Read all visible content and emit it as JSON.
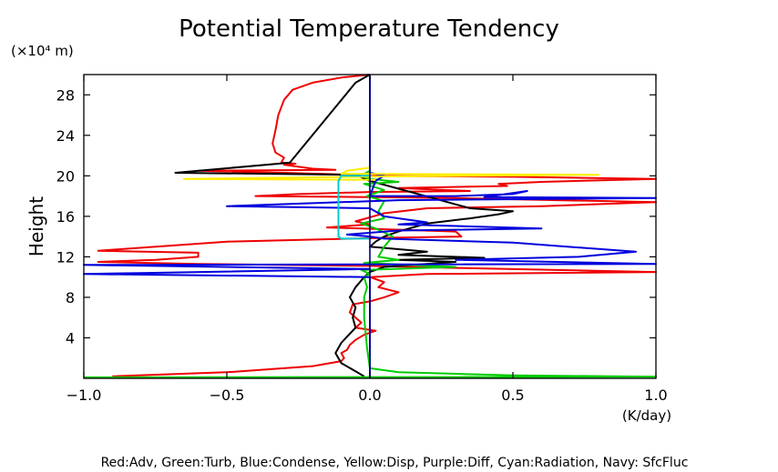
{
  "chart_data": {
    "type": "line",
    "title": "Potential Temperature Tendency",
    "ylabel": "Height",
    "y_unit_label": "(×10⁴ m)",
    "x_unit_label": "(K/day)",
    "caption": "Red:Adv, Green:Turb, Blue:Condense, Yellow:Disp, Purple:Diff, Cyan:Radiation, Navy: SfcFluc",
    "xlim": [
      -1.0,
      1.0
    ],
    "ylim": [
      0,
      30
    ],
    "x_ticks": [
      -1.0,
      -0.5,
      0.0,
      0.5,
      1.0
    ],
    "x_tick_labels": [
      "−1.0",
      "−0.5",
      "0.0",
      "0.5",
      "1.0"
    ],
    "y_ticks": [
      4,
      8,
      12,
      16,
      20,
      24,
      28
    ],
    "y_tick_labels": [
      "4",
      "8",
      "12",
      "16",
      "20",
      "24",
      "28"
    ],
    "grid": false,
    "series": [
      {
        "color": "#ee0000",
        "points": [
          [
            0.0,
            30
          ],
          [
            -0.1,
            29.7
          ],
          [
            -0.2,
            29.2
          ],
          [
            -0.27,
            28.5
          ],
          [
            -0.3,
            27.5
          ],
          [
            -0.32,
            26
          ],
          [
            -0.33,
            24.5
          ],
          [
            -0.34,
            23.2
          ],
          [
            -0.33,
            22.3
          ],
          [
            -0.3,
            21.8
          ],
          [
            -0.31,
            21.3
          ],
          [
            -0.26,
            21.2
          ],
          [
            -0.3,
            21.1
          ],
          [
            -0.2,
            20.7
          ],
          [
            -0.12,
            20.6
          ],
          [
            -0.6,
            20.5
          ],
          [
            -0.3,
            20.3
          ],
          [
            -0.06,
            20.1
          ],
          [
            -0.02,
            20.0
          ],
          [
            0.5,
            19.9
          ],
          [
            1.0,
            19.7
          ],
          [
            0.6,
            19.4
          ],
          [
            0.45,
            19.2
          ],
          [
            0.48,
            19.0
          ],
          [
            0.1,
            18.8
          ],
          [
            0.35,
            18.5
          ],
          [
            0.0,
            18.4
          ],
          [
            -0.25,
            18.2
          ],
          [
            -0.4,
            18.0
          ],
          [
            0.0,
            17.9
          ],
          [
            0.3,
            17.8
          ],
          [
            1.0,
            17.4
          ],
          [
            0.6,
            17.0
          ],
          [
            0.2,
            16.8
          ],
          [
            0.05,
            16.3
          ],
          [
            0.0,
            15.9
          ],
          [
            -0.05,
            15.5
          ],
          [
            0.0,
            15.2
          ],
          [
            -0.15,
            14.9
          ],
          [
            0.3,
            14.5
          ],
          [
            0.32,
            14.0
          ],
          [
            0.1,
            13.9
          ],
          [
            -0.5,
            13.5
          ],
          [
            -0.95,
            12.6
          ],
          [
            -0.6,
            12.4
          ],
          [
            -0.6,
            12.0
          ],
          [
            -0.75,
            11.7
          ],
          [
            -0.95,
            11.5
          ],
          [
            -0.6,
            11.3
          ],
          [
            0.0,
            11.1
          ],
          [
            0.3,
            10.9
          ],
          [
            1.0,
            10.5
          ],
          [
            0.2,
            10.3
          ],
          [
            0.0,
            10.0
          ],
          [
            0.05,
            9.5
          ],
          [
            0.03,
            9.0
          ],
          [
            0.1,
            8.5
          ],
          [
            0.05,
            8.0
          ],
          [
            0.0,
            7.6
          ],
          [
            -0.06,
            7.3
          ],
          [
            -0.07,
            6.5
          ],
          [
            -0.05,
            6.0
          ],
          [
            -0.03,
            5.5
          ],
          [
            -0.05,
            5.0
          ],
          [
            0.02,
            4.7
          ],
          [
            -0.02,
            4.3
          ],
          [
            -0.05,
            3.8
          ],
          [
            -0.07,
            3.3
          ],
          [
            -0.08,
            2.8
          ],
          [
            -0.1,
            2.5
          ],
          [
            -0.09,
            2.0
          ],
          [
            -0.1,
            1.7
          ],
          [
            -0.2,
            1.2
          ],
          [
            -0.5,
            0.6
          ],
          [
            -0.9,
            0.2
          ]
        ]
      },
      {
        "color": "#000000",
        "points": [
          [
            0.0,
            30
          ],
          [
            -0.05,
            29.2
          ],
          [
            -0.28,
            21.3
          ],
          [
            -0.68,
            20.3
          ],
          [
            -0.05,
            20.1
          ],
          [
            0.0,
            19.5
          ],
          [
            0.35,
            16.8
          ],
          [
            0.5,
            16.5
          ],
          [
            0.45,
            16.2
          ],
          [
            0.35,
            15.8
          ],
          [
            0.2,
            15.3
          ],
          [
            0.1,
            14.5
          ],
          [
            0.05,
            14.0
          ],
          [
            0.02,
            13.5
          ],
          [
            0.0,
            13.0
          ],
          [
            0.2,
            12.5
          ],
          [
            0.1,
            12.2
          ],
          [
            0.4,
            11.9
          ],
          [
            0.1,
            11.7
          ],
          [
            0.3,
            11.5
          ],
          [
            0.05,
            11.0
          ],
          [
            0.0,
            10.5
          ],
          [
            -0.02,
            10.0
          ],
          [
            -0.05,
            9.0
          ],
          [
            -0.07,
            8.0
          ],
          [
            -0.05,
            7.0
          ],
          [
            -0.06,
            6.0
          ],
          [
            -0.05,
            5.0
          ],
          [
            -0.1,
            3.5
          ],
          [
            -0.12,
            2.5
          ],
          [
            -0.1,
            1.5
          ],
          [
            -0.05,
            0.7
          ],
          [
            -0.02,
            0.2
          ]
        ]
      },
      {
        "color": "#00cc00",
        "points": [
          [
            0.0,
            30
          ],
          [
            0.0,
            20.5
          ],
          [
            -0.03,
            20.0
          ],
          [
            0.0,
            19.7
          ],
          [
            0.1,
            19.4
          ],
          [
            -0.02,
            19.2
          ],
          [
            0.05,
            18.6
          ],
          [
            -0.01,
            18.0
          ],
          [
            0.05,
            17.5
          ],
          [
            0.03,
            16.5
          ],
          [
            0.05,
            15.8
          ],
          [
            -0.03,
            15.3
          ],
          [
            0.02,
            14.8
          ],
          [
            0.08,
            14.0
          ],
          [
            0.05,
            13.0
          ],
          [
            0.03,
            12.0
          ],
          [
            0.1,
            11.7
          ],
          [
            -0.02,
            11.4
          ],
          [
            0.3,
            11.0
          ],
          [
            -0.03,
            10.7
          ],
          [
            0.0,
            10.3
          ],
          [
            -0.02,
            10.0
          ],
          [
            -0.01,
            9.0
          ],
          [
            -0.02,
            8.0
          ],
          [
            -0.02,
            6.0
          ],
          [
            -0.01,
            3.0
          ],
          [
            0.0,
            1.0
          ],
          [
            0.1,
            0.6
          ],
          [
            0.5,
            0.3
          ],
          [
            1.0,
            0.15
          ],
          [
            -1.0,
            0.1
          ]
        ]
      },
      {
        "color": "#0000dd",
        "points": [
          [
            0.0,
            30
          ],
          [
            0.0,
            20.3
          ],
          [
            0.05,
            20.0
          ],
          [
            0.02,
            19.5
          ],
          [
            0.0,
            18.0
          ],
          [
            0.3,
            18.0
          ],
          [
            0.5,
            18.2
          ],
          [
            0.55,
            18.5
          ],
          [
            0.5,
            18.3
          ],
          [
            0.4,
            17.9
          ],
          [
            1.0,
            17.8
          ],
          [
            0.1,
            17.6
          ],
          [
            -0.5,
            17.0
          ],
          [
            0.0,
            16.8
          ],
          [
            0.05,
            16.0
          ],
          [
            0.2,
            15.4
          ],
          [
            0.1,
            15.2
          ],
          [
            0.6,
            14.8
          ],
          [
            0.1,
            14.6
          ],
          [
            -0.08,
            14.2
          ],
          [
            0.0,
            14.0
          ],
          [
            0.05,
            13.8
          ],
          [
            0.5,
            13.4
          ],
          [
            0.93,
            12.5
          ],
          [
            0.73,
            12.0
          ],
          [
            0.3,
            11.7
          ],
          [
            1.0,
            11.3
          ],
          [
            -1.0,
            11.2
          ],
          [
            0.0,
            10.8
          ],
          [
            -0.8,
            10.4
          ],
          [
            -1.0,
            10.3
          ],
          [
            0.0,
            10.0
          ],
          [
            0.0,
            0.0
          ]
        ]
      },
      {
        "color": "#ffee00",
        "points": [
          [
            0.0,
            20.8
          ],
          [
            -0.08,
            20.5
          ],
          [
            -0.1,
            20.2
          ],
          [
            0.8,
            20.1
          ],
          [
            0.1,
            19.95
          ],
          [
            -0.65,
            19.7
          ],
          [
            0.02,
            19.6
          ]
        ]
      },
      {
        "color": "#00cccc",
        "points": [
          [
            0.0,
            20.0
          ],
          [
            -0.1,
            20.0
          ],
          [
            -0.11,
            19.5
          ],
          [
            -0.11,
            14.0
          ],
          [
            -0.1,
            13.8
          ],
          [
            0.0,
            13.8
          ]
        ]
      },
      {
        "color": "#000080",
        "points": [
          [
            0.0,
            0.0
          ],
          [
            0.0,
            30.0
          ]
        ]
      }
    ]
  }
}
